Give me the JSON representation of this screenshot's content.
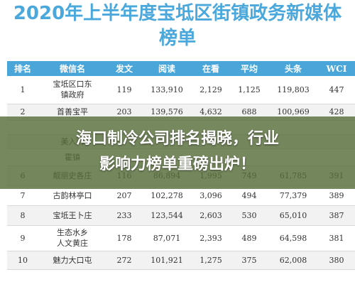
{
  "header": {
    "title_line1": "2020年上半年度宝坻区街镇政务新媒体",
    "title_line2": "榜单"
  },
  "table": {
    "columns": [
      "排名",
      "微信名",
      "发文",
      "阅读",
      "在看",
      "平均",
      "头条",
      "WCI"
    ],
    "rows": [
      {
        "rank": "1",
        "name_line1": "宝坻区口东",
        "name_line2": "镇政府",
        "posts": "119",
        "reads": "133,910",
        "watching": "2,129",
        "avg": "1,125",
        "headline": "119,803",
        "wci": "447"
      },
      {
        "rank": "2",
        "name_line1": "首善宝平",
        "name_line2": "",
        "posts": "203",
        "reads": "139,576",
        "watching": "4,632",
        "avg": "688",
        "headline": "100,969",
        "wci": "428"
      },
      {
        "rank": "",
        "name_line1": "",
        "name_line2": "",
        "posts": "",
        "reads": "",
        "watching": "",
        "avg": "",
        "headline": "",
        "wci": ""
      },
      {
        "rank": "",
        "name_line1": "美入门",
        "name_line2": "",
        "posts": "",
        "reads": "",
        "watching": "",
        "avg": "",
        "headline": "",
        "wci": ""
      },
      {
        "rank": "",
        "name_line1": "霍镇",
        "name_line2": "",
        "posts": "",
        "reads": "",
        "watching": "",
        "avg": "",
        "headline": "",
        "wci": ""
      },
      {
        "rank": "6",
        "name_line1": "靓丽史各庄",
        "name_line2": "",
        "posts": "116",
        "reads": "86,894",
        "watching": "1,995",
        "avg": "749",
        "headline": "61,785",
        "wci": "391"
      },
      {
        "rank": "7",
        "name_line1": "古韵林亭口",
        "name_line2": "",
        "posts": "207",
        "reads": "102,278",
        "watching": "3,096",
        "avg": "494",
        "headline": "77,379",
        "wci": "389"
      },
      {
        "rank": "8",
        "name_line1": "宝坻王卜庄",
        "name_line2": "",
        "posts": "233",
        "reads": "123,544",
        "watching": "2,603",
        "avg": "530",
        "headline": "65,010",
        "wci": "387"
      },
      {
        "rank": "9",
        "name_line1": "生态水乡",
        "name_line2": "人文黄庄",
        "posts": "178",
        "reads": "87,071",
        "watching": "2,393",
        "avg": "489",
        "headline": "64,598",
        "wci": "381"
      },
      {
        "rank": "10",
        "name_line1": "魅力大口屯",
        "name_line2": "",
        "posts": "272",
        "reads": "101,921",
        "watching": "1,275",
        "avg": "375",
        "headline": "62,008",
        "wci": "380"
      }
    ]
  },
  "overlay": {
    "line1": "海口制冷公司排名揭晓，行业",
    "line2": "影响力榜单重磅出炉！"
  },
  "colors": {
    "accent": "#4aa6d9",
    "banner": "#586e3a"
  }
}
